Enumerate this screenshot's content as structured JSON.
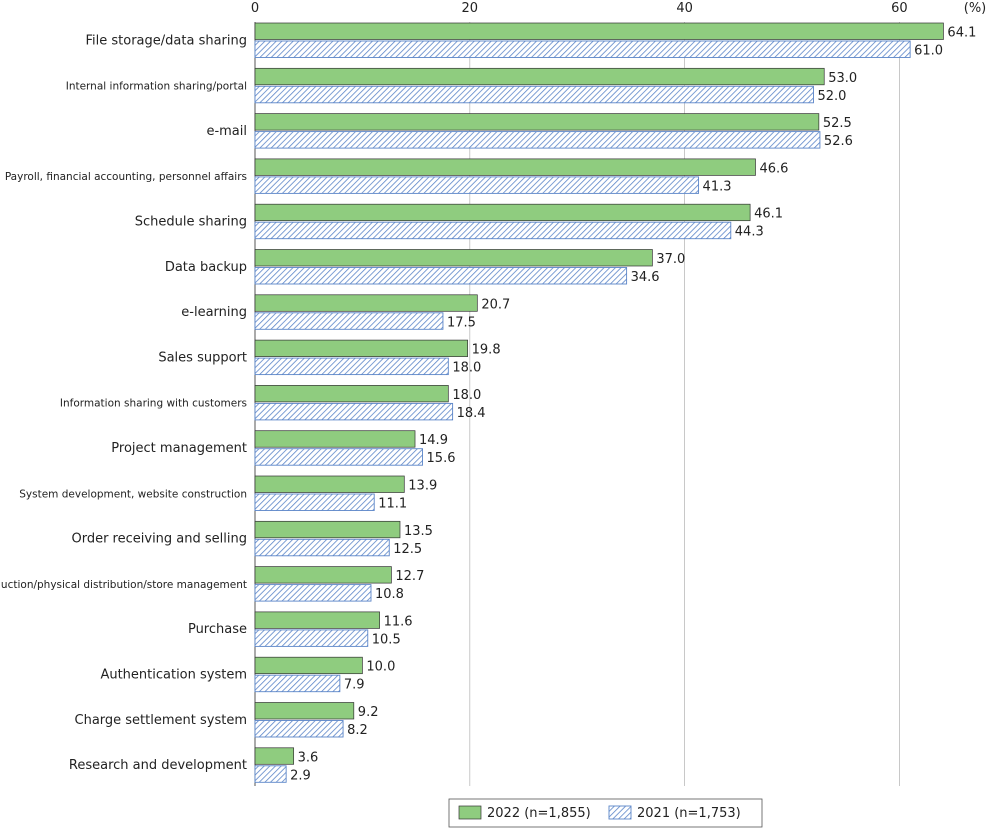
{
  "chart_data": {
    "type": "bar",
    "orientation": "horizontal",
    "unit_label": "(%)",
    "xlim": [
      0,
      64.1
    ],
    "xticks": [
      0,
      20,
      40,
      60
    ],
    "grid": true,
    "legend_placement": "bottom-right",
    "categories": [
      "File storage/data sharing",
      "Internal information sharing/portal",
      "e-mail",
      "Payroll, financial accounting, personnel affairs",
      "Schedule sharing",
      "Data backup",
      "e-learning",
      "Sales support",
      "Information sharing with customers",
      "Project management",
      "System development, website construction",
      "Order receiving and selling",
      "Production/physical distribution/store management",
      "Purchase",
      "Authentication system",
      "Charge settlement system",
      "Research and development"
    ],
    "series": [
      {
        "name": "2022 (n=1,855)",
        "color": "#8fcc7f",
        "pattern": "solid",
        "values": [
          64.1,
          53.0,
          52.5,
          46.6,
          46.1,
          37.0,
          20.7,
          19.8,
          18.0,
          14.9,
          13.9,
          13.5,
          12.7,
          11.6,
          10.0,
          9.2,
          3.6
        ]
      },
      {
        "name": "2021 (n=1,753)",
        "color": "#5b85c8",
        "pattern": "hatched",
        "values": [
          61.0,
          52.0,
          52.6,
          41.3,
          44.3,
          34.6,
          17.5,
          18.0,
          18.4,
          15.6,
          11.1,
          12.5,
          10.8,
          10.5,
          7.9,
          8.2,
          2.9
        ]
      }
    ]
  }
}
